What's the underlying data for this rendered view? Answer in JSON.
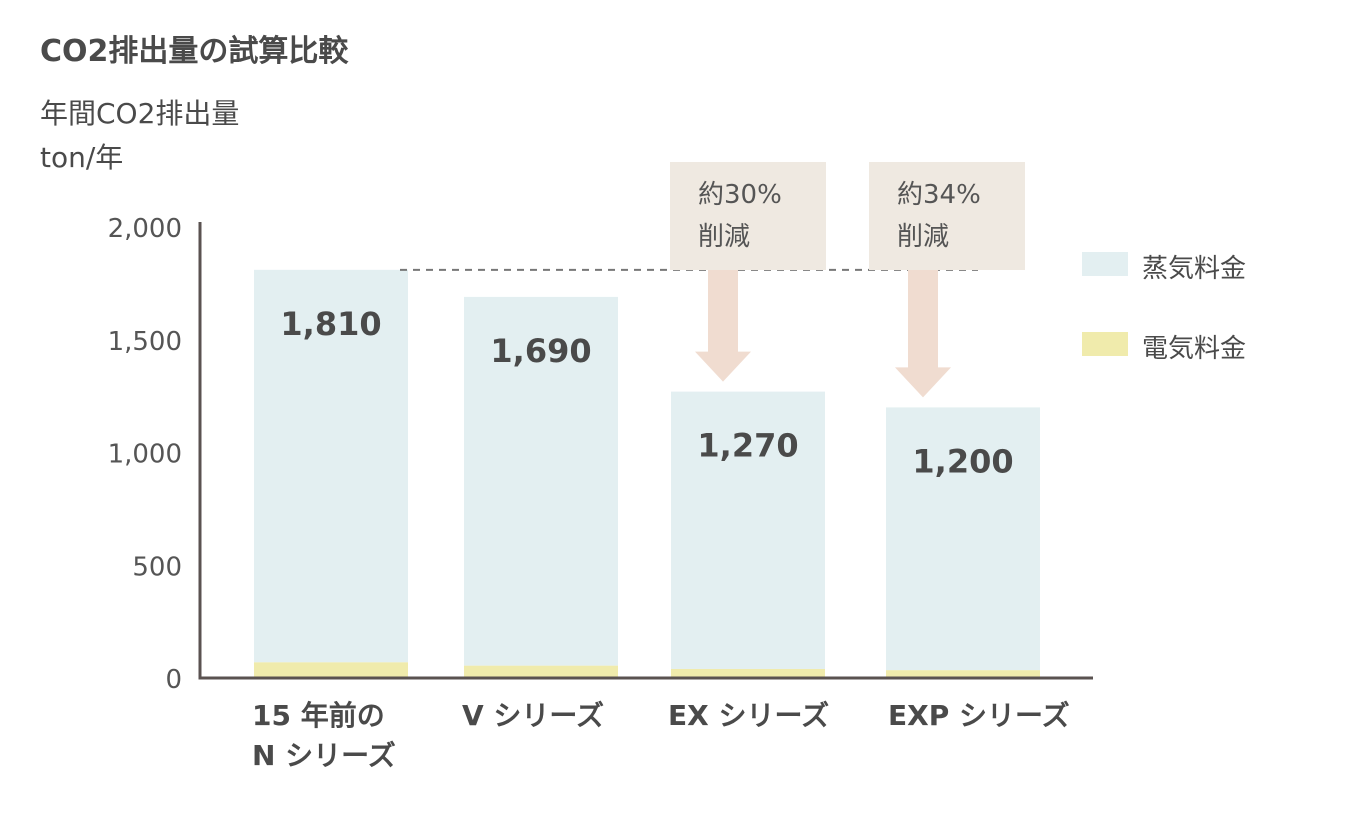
{
  "chart_data": {
    "type": "bar",
    "stacked": true,
    "title": "CO2排出量の試算比較",
    "ylabel_line1": "年間CO2排出量",
    "ylabel_line2": "ton/年",
    "ylim": [
      0,
      2000
    ],
    "yticks": [
      "0",
      "500",
      "1,000",
      "1,500",
      "2,000"
    ],
    "ytick_values": [
      0,
      500,
      1000,
      1500,
      2000
    ],
    "categories": [
      {
        "line1": "15 年前の",
        "line2": "N シリーズ"
      },
      {
        "line1": "V シリーズ",
        "line2": ""
      },
      {
        "line1": "EX シリーズ",
        "line2": ""
      },
      {
        "line1": "EXP シリーズ",
        "line2": ""
      }
    ],
    "totals": [
      1810,
      1690,
      1270,
      1200
    ],
    "total_labels": [
      "1,810",
      "1,690",
      "1,270",
      "1,200"
    ],
    "series": [
      {
        "name": "電気料金",
        "color": "#f0ebac",
        "values": [
          70,
          55,
          40,
          35
        ]
      },
      {
        "name": "蒸気料金",
        "color": "#e3eff1",
        "values": [
          1740,
          1635,
          1230,
          1165
        ]
      }
    ],
    "annotations": [
      {
        "line1": "約30%",
        "line2": "削減",
        "target_index": 2
      },
      {
        "line1": "約34%",
        "line2": "削減",
        "target_index": 3
      }
    ],
    "legend_position": "right",
    "grid": false,
    "colors": {
      "axis": "#5a5250",
      "arrow": "#f0dcd0",
      "callout_bg": "#efe9e1",
      "dashed": "#777777"
    }
  }
}
